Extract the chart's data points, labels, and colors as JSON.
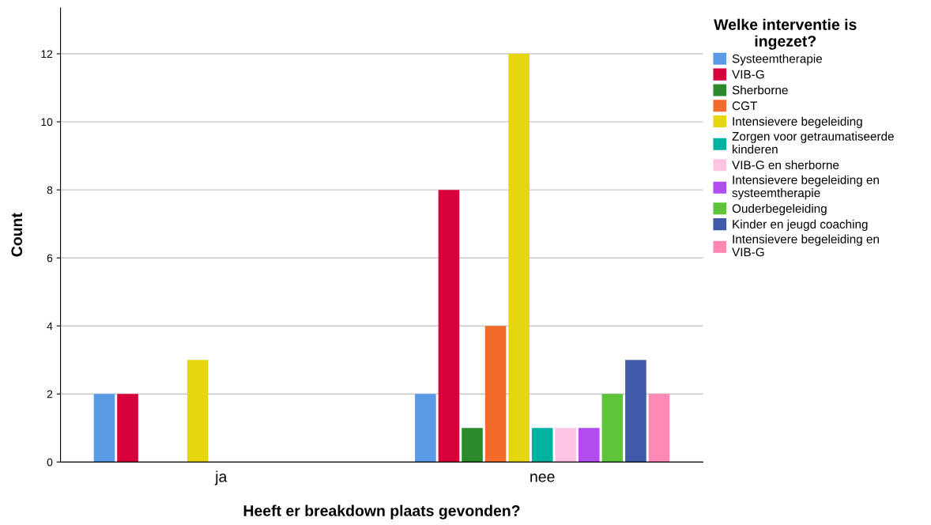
{
  "chart_data": {
    "type": "bar",
    "xlabel": "Heeft er breakdown plaats gevonden?",
    "ylabel": "Count",
    "legend_title": "Welke interventie is ingezet?",
    "categories": [
      "ja",
      "nee"
    ],
    "series": [
      {
        "name": "Systeemtherapie",
        "color": "#5b9be6",
        "values": [
          2,
          2
        ]
      },
      {
        "name": "VIB-G",
        "color": "#d8003a",
        "values": [
          2,
          8
        ]
      },
      {
        "name": "Sherborne",
        "color": "#2b8a2b",
        "values": [
          0,
          1
        ]
      },
      {
        "name": "CGT",
        "color": "#f26b2a",
        "values": [
          0,
          4
        ]
      },
      {
        "name": "Intensievere begeleiding",
        "color": "#e6d60e",
        "values": [
          3,
          12
        ]
      },
      {
        "name": "Zorgen voor getraumatiseerde kinderen",
        "color": "#00b3a0",
        "values": [
          0,
          1
        ]
      },
      {
        "name": "VIB-G en sherborne",
        "color": "#ffc4e4",
        "values": [
          0,
          1
        ]
      },
      {
        "name": "Intensievere begeleiding en systeemtherapie",
        "color": "#b04cf0",
        "values": [
          0,
          1
        ]
      },
      {
        "name": "Ouderbegeleiding",
        "color": "#5ec43a",
        "values": [
          0,
          2
        ]
      },
      {
        "name": "Kinder en jeugd coaching",
        "color": "#3e5aa8",
        "values": [
          0,
          3
        ]
      },
      {
        "name": "Intensievere begeleiding en VIB-G",
        "color": "#ff88b4",
        "values": [
          0,
          2
        ]
      }
    ],
    "ylim": [
      0,
      13.35
    ],
    "yticks": [
      0,
      2,
      4,
      6,
      8,
      10,
      12
    ],
    "grid": "y",
    "legend": "right"
  }
}
